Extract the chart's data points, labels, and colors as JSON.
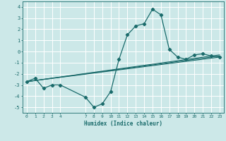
{
  "xlabel": "Humidex (Indice chaleur)",
  "bg_color": "#cce8e8",
  "grid_color": "#ffffff",
  "line_color": "#1a6b6b",
  "xlim": [
    -0.5,
    23.5
  ],
  "ylim": [
    -5.5,
    4.5
  ],
  "xticks": [
    0,
    1,
    2,
    3,
    4,
    7,
    8,
    9,
    10,
    11,
    12,
    13,
    14,
    15,
    16,
    17,
    18,
    19,
    20,
    21,
    22,
    23
  ],
  "yticks": [
    -5,
    -4,
    -3,
    -2,
    -1,
    0,
    1,
    2,
    3,
    4
  ],
  "main_x": [
    0,
    1,
    2,
    3,
    4,
    7,
    8,
    9,
    10,
    11,
    12,
    13,
    14,
    15,
    16,
    17,
    18,
    19,
    20,
    21,
    22,
    23
  ],
  "main_y": [
    -2.7,
    -2.4,
    -3.3,
    -3.0,
    -3.0,
    -4.1,
    -5.0,
    -4.7,
    -3.6,
    -0.7,
    1.5,
    2.3,
    2.5,
    3.8,
    3.3,
    0.2,
    -0.5,
    -0.7,
    -0.3,
    -0.2,
    -0.4,
    -0.5
  ],
  "trend_lines": [
    {
      "x": [
        0,
        23
      ],
      "y": [
        -2.7,
        -0.3
      ]
    },
    {
      "x": [
        0,
        23
      ],
      "y": [
        -2.7,
        -0.4
      ]
    },
    {
      "x": [
        0,
        23
      ],
      "y": [
        -2.7,
        -0.5
      ]
    }
  ]
}
